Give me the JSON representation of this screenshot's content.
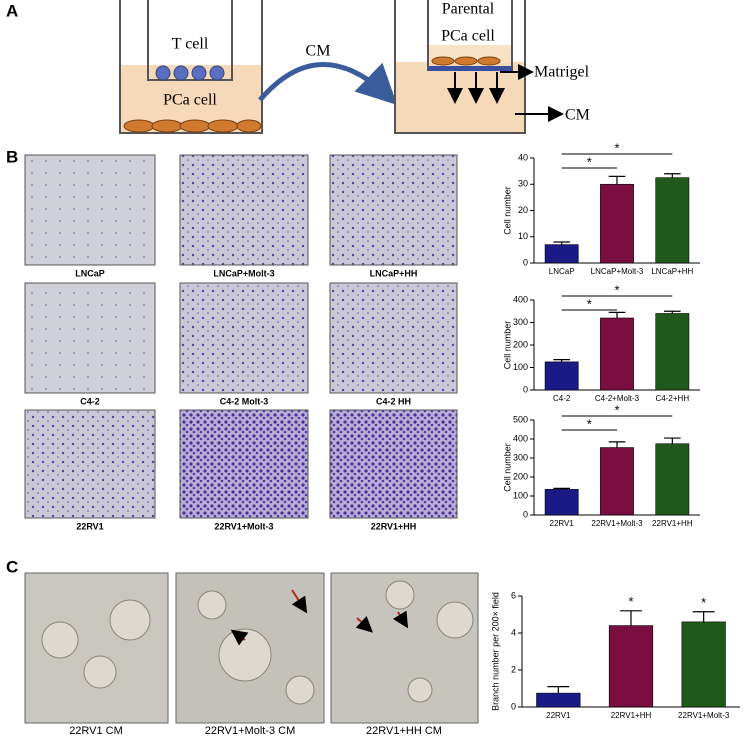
{
  "panels": [
    "A",
    "B",
    "C"
  ],
  "diagram": {
    "left_insert": "T cell",
    "left_bottom": "PCa cell",
    "arrow": "CM",
    "right_top": "Parental",
    "right_insert": "PCa cell",
    "matrigel": "Matrigel",
    "right_cm": "CM"
  },
  "captions_b": [
    "LNCaP",
    "LNCaP+Molt-3",
    "LNCaP+HH",
    "C4-2",
    "C4-2 Molt-3",
    "C4-2 HH",
    "22RV1",
    "22RV1+Molt-3",
    "22RV1+HH"
  ],
  "captions_c": [
    "22RV1 CM",
    "22RV1+Molt-3 CM",
    "22RV1+HH CM"
  ],
  "chart_data": [
    {
      "type": "bar",
      "y_label": "Cell number",
      "categories": [
        "LNCaP",
        "LNCaP+Molt-3",
        "LNCaP+HH"
      ],
      "values": [
        7,
        30,
        32.5
      ],
      "errors": [
        1,
        3,
        1.5
      ],
      "colors": [
        "#1a1a86",
        "#7a0e40",
        "#1f5a1c"
      ],
      "ylim": [
        0,
        40
      ],
      "yticks": [
        0,
        10,
        20,
        30,
        40
      ],
      "annotations": [
        "*",
        "*"
      ]
    },
    {
      "type": "bar",
      "y_label": "Cell number",
      "categories": [
        "C4-2",
        "C4-2+Molt-3",
        "C4-2+HH"
      ],
      "values": [
        125,
        320,
        340
      ],
      "errors": [
        10,
        25,
        10
      ],
      "colors": [
        "#1a1a86",
        "#7a0e40",
        "#1f5a1c"
      ],
      "ylim": [
        0,
        400
      ],
      "yticks": [
        0,
        100,
        200,
        300,
        400
      ],
      "annotations": [
        "*",
        "*"
      ]
    },
    {
      "type": "bar",
      "y_label": "Cell number",
      "categories": [
        "22RV1",
        "22RV1+Molt-3",
        "22RV1+HH"
      ],
      "values": [
        135,
        355,
        375
      ],
      "errors": [
        5,
        30,
        30
      ],
      "colors": [
        "#1a1a86",
        "#7a0e40",
        "#1f5a1c"
      ],
      "ylim": [
        0,
        500
      ],
      "yticks": [
        0,
        100,
        200,
        300,
        400,
        500
      ],
      "annotations": [
        "*",
        "*"
      ]
    },
    {
      "type": "bar",
      "y_label": "Branch number per 200× field",
      "categories": [
        "22RV1",
        "22RV1+HH",
        "22RV1+Molt-3"
      ],
      "values": [
        0.75,
        4.4,
        4.6
      ],
      "errors": [
        0.35,
        0.8,
        0.55
      ],
      "colors": [
        "#1a1a86",
        "#7a0e40",
        "#1f5a1c"
      ],
      "ylim": [
        0,
        6
      ],
      "yticks": [
        0,
        2,
        4,
        6
      ],
      "annotations": [
        "*",
        "*"
      ]
    }
  ]
}
